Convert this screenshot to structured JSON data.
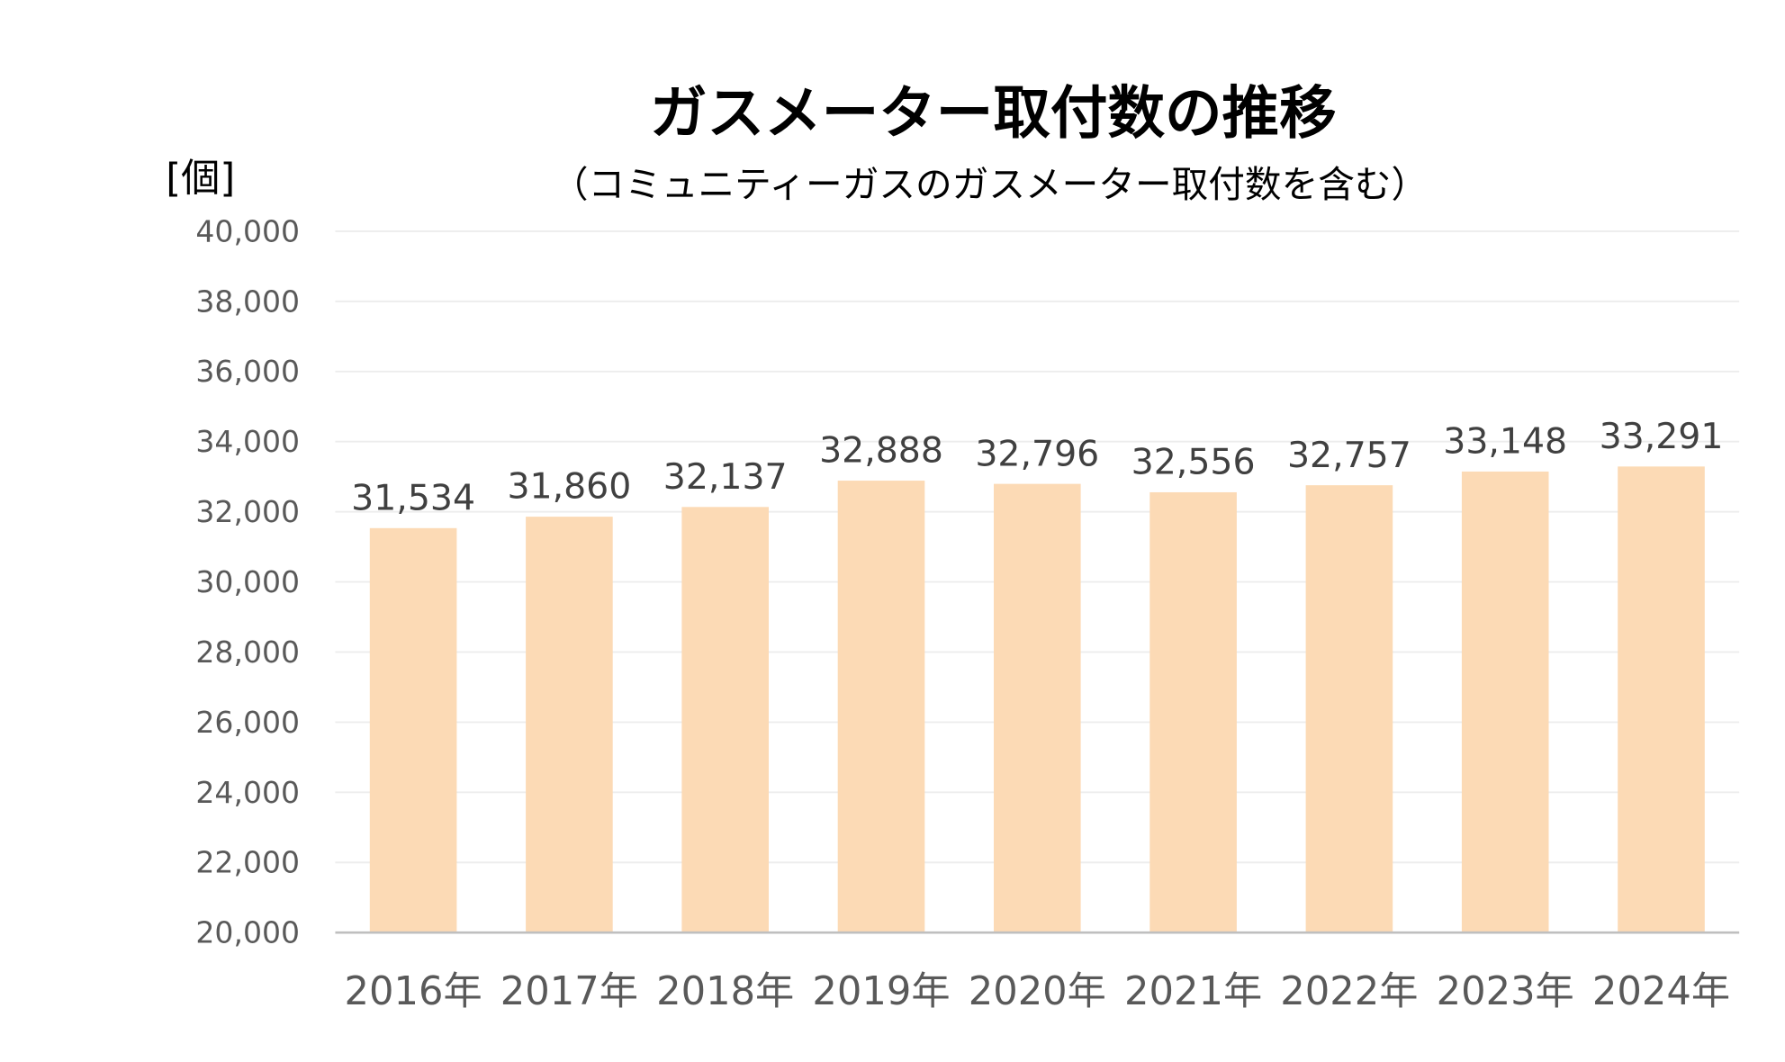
{
  "chart_data": {
    "type": "bar",
    "title": "ガスメーター取付数の推移",
    "subtitle": "（コミュニティーガスのガスメーター取付数を含む）",
    "ylabel": "[個]",
    "xlabel": "",
    "categories": [
      "2016年",
      "2017年",
      "2018年",
      "2019年",
      "2020年",
      "2021年",
      "2022年",
      "2023年",
      "2024年"
    ],
    "values": [
      31534,
      31860,
      32137,
      32888,
      32796,
      32556,
      32757,
      33148,
      33291
    ],
    "data_labels": [
      "31,534",
      "31,860",
      "32,137",
      "32,888",
      "32,796",
      "32,556",
      "32,757",
      "33,148",
      "33,291"
    ],
    "ylim": [
      20000,
      40000
    ],
    "yticks": [
      20000,
      22000,
      24000,
      26000,
      28000,
      30000,
      32000,
      34000,
      36000,
      38000,
      40000
    ],
    "ytick_labels": [
      "20,000",
      "22,000",
      "24,000",
      "26,000",
      "28,000",
      "30,000",
      "32,000",
      "34,000",
      "36,000",
      "38,000",
      "40,000"
    ],
    "grid": true,
    "legend": "none",
    "colors": {
      "bar": "#FCDAB5",
      "grid": "#EDEDED",
      "axis": "#BFBFBF"
    }
  }
}
